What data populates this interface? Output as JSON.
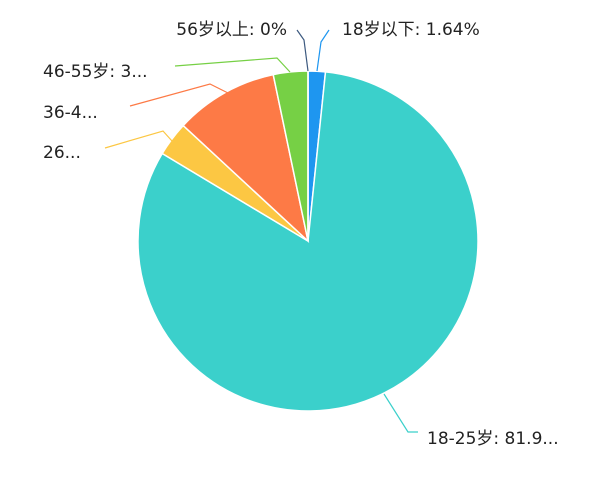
{
  "chart_data": {
    "type": "pie",
    "values": [
      1.64,
      81.97,
      3.28,
      9.84,
      3.28,
      0
    ],
    "value_labels": [
      "18岁以下: 1.64%",
      "18-25岁: 81.9...",
      "26...",
      "36-4...",
      "46-55岁: 3...",
      "56岁以上: 0%"
    ],
    "colors": [
      "#1e96f0",
      "#3bd0cb",
      "#fcc743",
      "#fd7a46",
      "#76d045",
      "#3d5a80"
    ]
  }
}
